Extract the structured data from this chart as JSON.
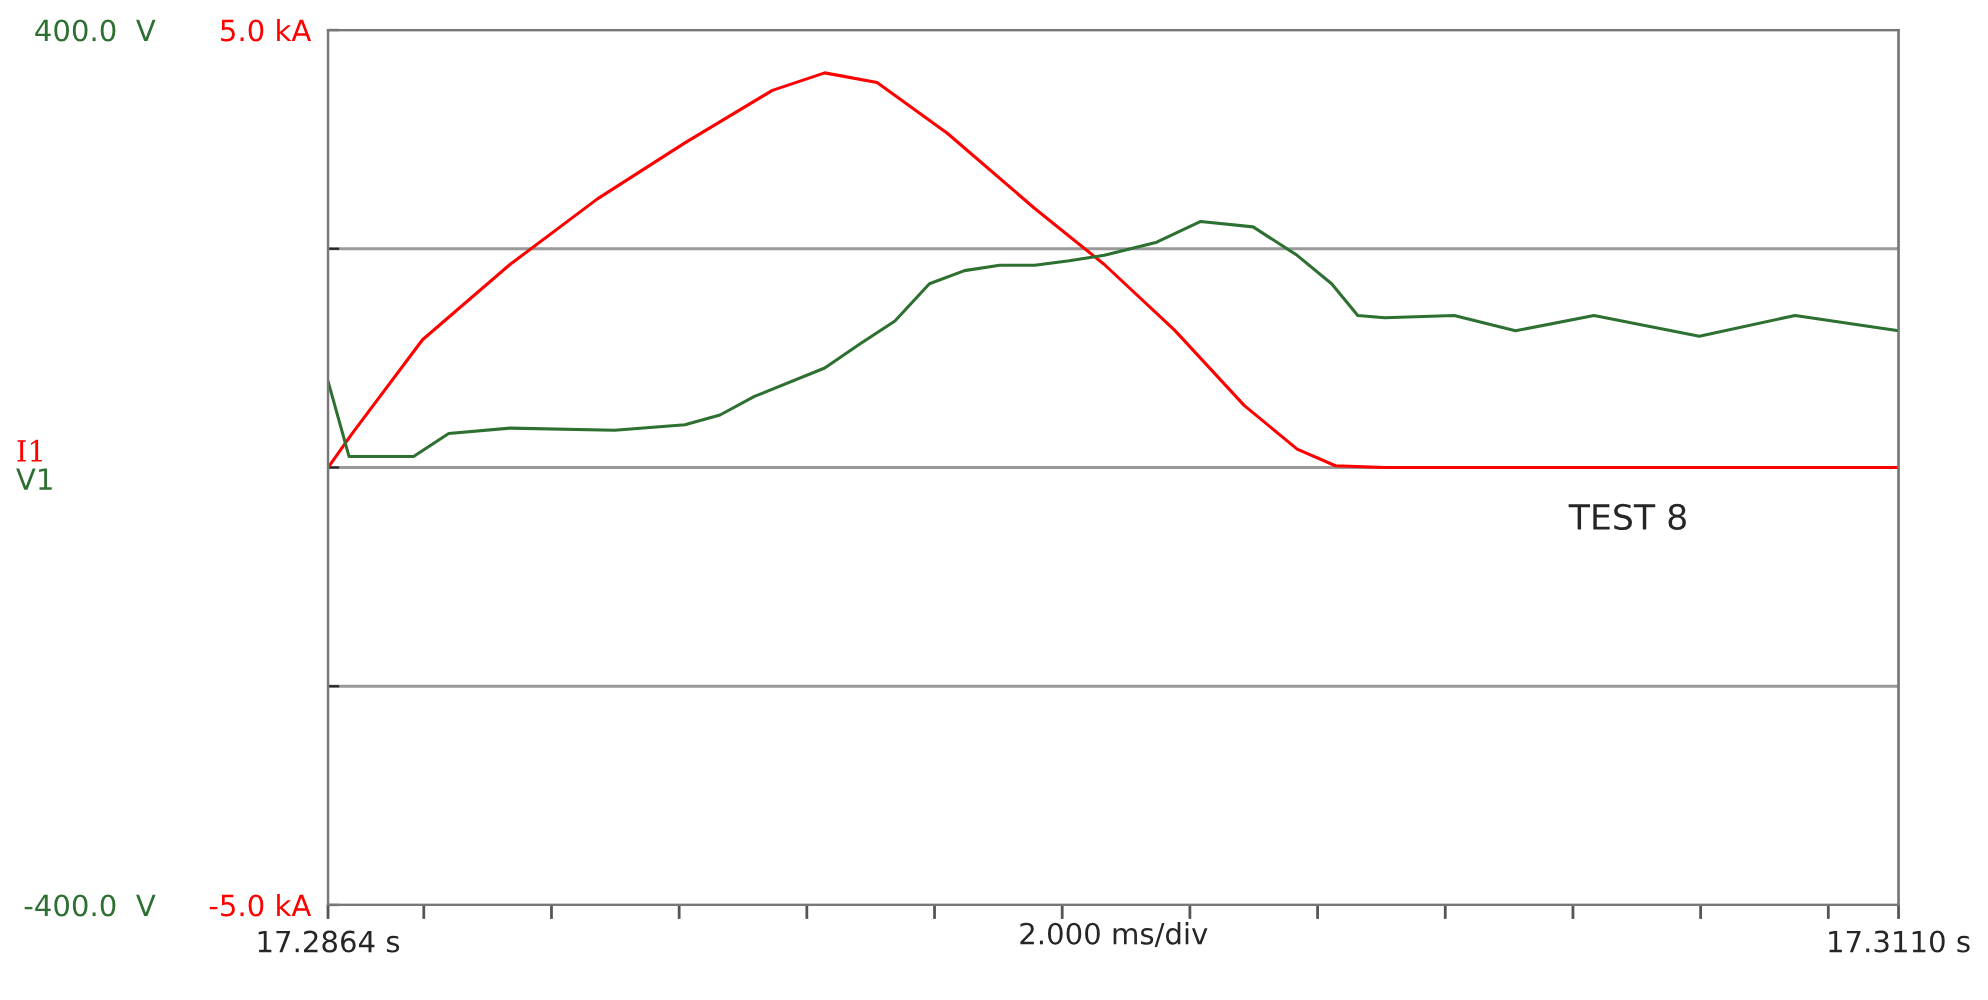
{
  "chart_data": {
    "type": "line",
    "series": [
      {
        "name": "I1",
        "color": "#ff0000",
        "axis": "y",
        "x": [
          17.2864,
          17.28678,
          17.28788,
          17.28925,
          17.29062,
          17.29199,
          17.29336,
          17.29418,
          17.295,
          17.2961,
          17.29747,
          17.29856,
          17.29966,
          17.30075,
          17.30158,
          17.30218,
          17.30295,
          17.311
        ],
        "values": [
          0,
          0.39,
          1.46,
          2.32,
          3.07,
          3.71,
          4.31,
          4.51,
          4.4,
          3.82,
          2.96,
          2.32,
          1.57,
          0.71,
          0.21,
          0.02,
          0,
          0
        ]
      },
      {
        "name": "V1",
        "color": "#2e7031",
        "axis": "y2",
        "x": [
          17.2864,
          17.28673,
          17.28774,
          17.28829,
          17.28925,
          17.29089,
          17.29199,
          17.29254,
          17.29308,
          17.29418,
          17.29473,
          17.29528,
          17.29582,
          17.29637,
          17.29692,
          17.29747,
          17.29801,
          17.29856,
          17.29938,
          17.30007,
          17.30089,
          17.30158,
          17.30212,
          17.30253,
          17.30295,
          17.30404,
          17.305,
          17.30623,
          17.30788,
          17.30938,
          17.311
        ],
        "values": [
          79,
          10,
          10,
          31,
          36,
          34,
          39,
          48,
          65,
          91,
          113,
          134,
          168,
          180,
          185,
          185,
          189,
          194,
          206,
          225,
          220,
          194,
          168,
          139,
          137,
          139,
          125,
          139,
          120,
          139,
          125
        ]
      }
    ],
    "xlim": [
      17.2864,
      17.311
    ],
    "xticks": [
      {
        "value": 17.2864,
        "label": "17.2864 s"
      },
      {
        "value": 17.2879,
        "label": null
      },
      {
        "value": 17.2899,
        "label": null
      },
      {
        "value": 17.2919,
        "label": null
      },
      {
        "value": 17.2939,
        "label": null
      },
      {
        "value": 17.2959,
        "label": null
      },
      {
        "value": 17.2979,
        "label": null
      },
      {
        "value": 17.2999,
        "label": null
      },
      {
        "value": 17.3019,
        "label": null
      },
      {
        "value": 17.3039,
        "label": null
      },
      {
        "value": 17.3059,
        "label": null
      },
      {
        "value": 17.3079,
        "label": null
      },
      {
        "value": 17.3099,
        "label": null
      },
      {
        "value": 17.311,
        "label": "17.3110 s"
      }
    ],
    "ylim": [
      -5,
      5
    ],
    "yticks": [
      {
        "value": 5,
        "label": "5.0 kA"
      },
      {
        "value": 2.5,
        "label": null
      },
      {
        "value": 0,
        "label": null
      },
      {
        "value": -2.5,
        "label": null
      },
      {
        "value": -5,
        "label": "-5.0 kA"
      }
    ],
    "y2lim": [
      -400,
      400
    ],
    "y2ticks": [
      {
        "value": 400,
        "label": "400.0  V"
      },
      {
        "value": -400,
        "label": "-400.0  V"
      }
    ],
    "grid": "y",
    "legend": false,
    "line_style": "solid",
    "marker": "none",
    "xlabel": "2.000 ms/div",
    "annotations": [
      "TEST 8"
    ]
  }
}
